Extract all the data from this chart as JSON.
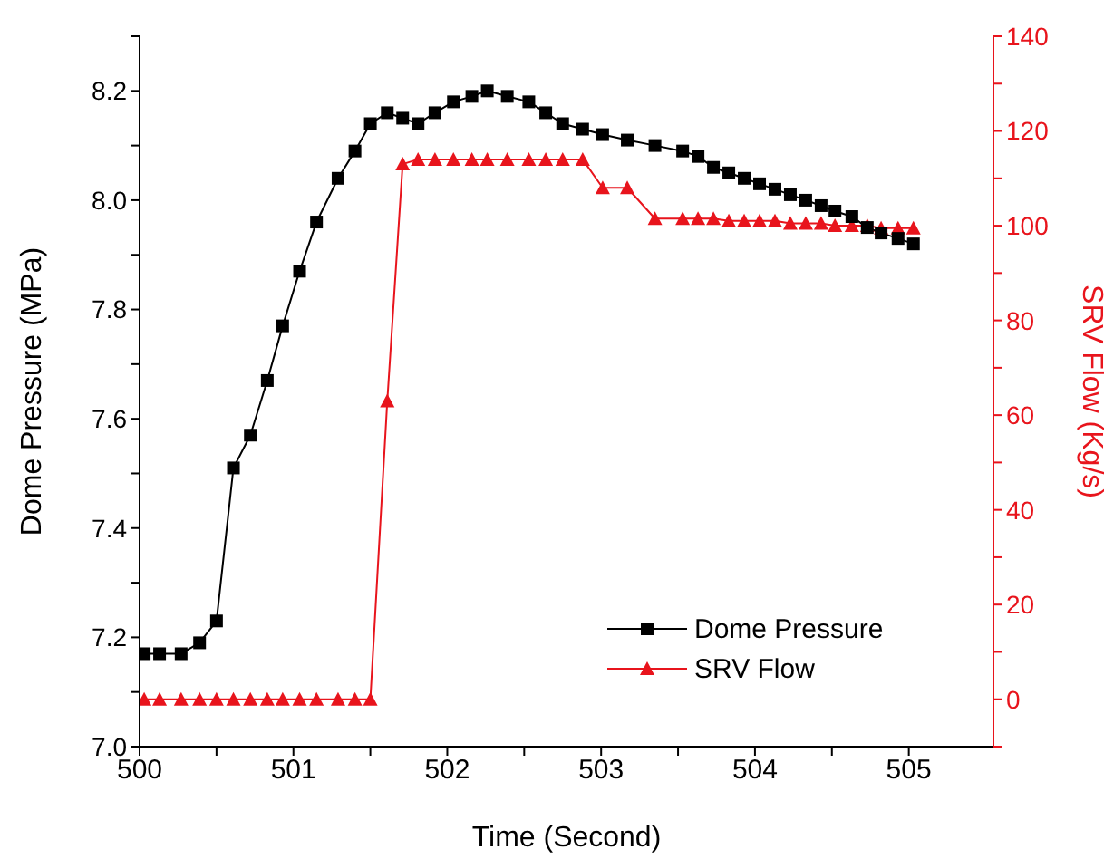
{
  "chart_data": {
    "type": "line",
    "xlabel": "Time (Second)",
    "ylabel": "Dome Pressure (MPa)",
    "y2label": "SRV Flow (Kg/s)",
    "x": [
      500.03,
      500.13,
      500.27,
      500.39,
      500.5,
      500.61,
      500.72,
      500.83,
      500.93,
      501.04,
      501.15,
      501.29,
      501.4,
      501.5,
      501.61,
      501.71,
      501.81,
      501.92,
      502.04,
      502.16,
      502.26,
      502.39,
      502.53,
      502.64,
      502.75,
      502.88,
      503.01,
      503.17,
      503.35,
      503.53,
      503.63,
      503.73,
      503.83,
      503.93,
      504.03,
      504.13,
      504.23,
      504.33,
      504.43,
      504.52,
      504.63,
      504.73,
      504.82,
      504.93,
      505.03
    ],
    "series": [
      {
        "name": "Dome Pressure",
        "color": "#000000",
        "marker": "square",
        "values": [
          7.17,
          7.17,
          7.17,
          7.19,
          7.23,
          7.51,
          7.57,
          7.67,
          7.77,
          7.87,
          7.96,
          8.04,
          8.09,
          8.14,
          8.16,
          8.15,
          8.14,
          8.16,
          8.18,
          8.19,
          8.2,
          8.19,
          8.18,
          8.16,
          8.14,
          8.13,
          8.12,
          8.11,
          8.1,
          8.09,
          8.08,
          8.06,
          8.05,
          8.04,
          8.03,
          8.02,
          8.01,
          8.0,
          7.99,
          7.98,
          7.97,
          7.95,
          7.94,
          7.93,
          7.92
        ]
      },
      {
        "name": "SRV Flow",
        "color": "#e8141c",
        "marker": "triangle",
        "axis": "y2",
        "values": [
          0,
          0,
          0,
          0,
          0,
          0,
          0,
          0,
          0,
          0,
          0,
          0,
          0,
          0,
          63,
          113,
          114,
          114,
          114,
          114,
          114,
          114,
          114,
          114,
          114,
          114,
          108,
          108,
          101.5,
          101.5,
          101.5,
          101.5,
          101,
          101,
          101,
          101,
          100.5,
          100.5,
          100.5,
          100,
          100,
          100,
          99.5,
          99.5,
          99.5
        ]
      }
    ],
    "xlim": [
      500,
      505.55
    ],
    "xticks": [
      500,
      {
        "value": 500.5,
        "label": null
      },
      501,
      {
        "value": 501.5,
        "label": null
      },
      502,
      {
        "value": 502.5,
        "label": null
      },
      503,
      {
        "value": 503.5,
        "label": null
      },
      504,
      {
        "value": 504.5,
        "label": null
      },
      505
    ],
    "ylim": [
      7.0,
      8.3
    ],
    "yticks": [
      {
        "value": 7,
        "label": "7.0"
      },
      {
        "value": 7.1,
        "label": null
      },
      {
        "value": 7.2,
        "label": "7.2"
      },
      {
        "value": 7.3,
        "label": null
      },
      {
        "value": 7.4,
        "label": "7.4"
      },
      {
        "value": 7.5,
        "label": null
      },
      {
        "value": 7.6,
        "label": "7.6"
      },
      {
        "value": 7.7,
        "label": null
      },
      {
        "value": 7.8,
        "label": "7.8"
      },
      {
        "value": 7.9,
        "label": null
      },
      {
        "value": 8,
        "label": "8.0"
      },
      {
        "value": 8.1,
        "label": null
      },
      {
        "value": 8.2,
        "label": "8.2"
      },
      {
        "value": 8.3,
        "label": null
      }
    ],
    "y2lim": [
      -10,
      140
    ],
    "y2ticks": [
      {
        "value": -10,
        "label": null
      },
      0,
      {
        "value": 10,
        "label": null
      },
      20,
      {
        "value": 30,
        "label": null
      },
      40,
      {
        "value": 50,
        "label": null
      },
      60,
      {
        "value": 70,
        "label": null
      },
      80,
      {
        "value": 90,
        "label": null
      },
      100,
      {
        "value": 110,
        "label": null
      },
      120,
      {
        "value": 130,
        "label": null
      },
      140
    ],
    "grid": false,
    "legend": "bottom right"
  }
}
